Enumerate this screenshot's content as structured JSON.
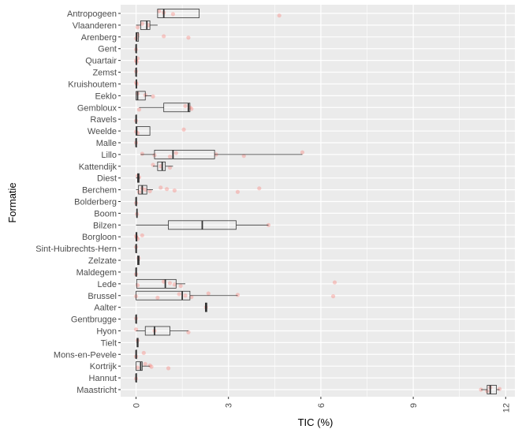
{
  "chart_data": {
    "type": "boxplot",
    "orientation": "horizontal",
    "xlabel": "TIC (%)",
    "ylabel": "Formatie",
    "xlim": [
      -0.5,
      12.3
    ],
    "xticks": [
      0,
      3,
      6,
      9,
      12
    ],
    "xtick_labels": [
      "0",
      "3",
      "6",
      "9",
      "12"
    ],
    "grid": true,
    "legend": "none",
    "colors": {
      "panel": "#ebebeb",
      "grid": "#ffffff",
      "box": "#333333",
      "point": "#f8766d"
    },
    "categories": [
      "Antropogeen",
      "Vlaanderen",
      "Arenberg",
      "Gent",
      "Quartair",
      "Zemst",
      "Kruishoutem",
      "Eeklo",
      "Gembloux",
      "Ravels",
      "Weelde",
      "Malle",
      "Lillo",
      "Kattendijk",
      "Diest",
      "Berchem",
      "Bolderberg",
      "Boom",
      "Bilzen",
      "Borgloon",
      "Sint-Huibrechts-Hern",
      "Zelzate",
      "Maldegem",
      "Lede",
      "Brussel",
      "Aalter",
      "Gentbrugge",
      "Hyon",
      "Tielt",
      "Mons-en-Pevele",
      "Kortrijk",
      "Hannut",
      "Maastricht"
    ],
    "boxes": [
      {
        "q1": 0.7,
        "median": 0.9,
        "q3": 2.05,
        "wmin": 0.7,
        "wmax": 2.05,
        "points": [
          0.75,
          0.9,
          1.2,
          4.65
        ]
      },
      {
        "q1": 0.15,
        "median": 0.35,
        "q3": 0.45,
        "wmin": 0.0,
        "wmax": 0.7,
        "points": [
          0.05,
          0.2,
          0.4
        ]
      },
      {
        "q1": 0.0,
        "median": 0.02,
        "q3": 0.08,
        "wmin": 0.0,
        "wmax": 0.1,
        "points": [
          0.0,
          0.05,
          0.9,
          1.7
        ]
      },
      {
        "q1": 0.0,
        "median": 0.0,
        "q3": 0.0,
        "wmin": 0.0,
        "wmax": 0.0,
        "points": [
          0.0
        ]
      },
      {
        "q1": 0.0,
        "median": 0.01,
        "q3": 0.02,
        "wmin": 0.0,
        "wmax": 0.03,
        "points": [
          0.0,
          0.02,
          0.05
        ]
      },
      {
        "q1": 0.0,
        "median": 0.0,
        "q3": 0.0,
        "wmin": 0.0,
        "wmax": 0.0,
        "points": [
          0.0
        ]
      },
      {
        "q1": 0.0,
        "median": 0.01,
        "q3": 0.02,
        "wmin": 0.0,
        "wmax": 0.03,
        "points": [
          0.0,
          0.02
        ]
      },
      {
        "q1": 0.0,
        "median": 0.05,
        "q3": 0.3,
        "wmin": 0.0,
        "wmax": 0.5,
        "points": [
          0.05,
          0.3,
          0.55
        ]
      },
      {
        "q1": 0.9,
        "median": 1.7,
        "q3": 1.75,
        "wmin": 0.1,
        "wmax": 1.75,
        "points": [
          0.1,
          1.6,
          1.75,
          1.8
        ]
      },
      {
        "q1": 0.0,
        "median": 0.0,
        "q3": 0.0,
        "wmin": 0.0,
        "wmax": 0.0,
        "points": [
          0.0
        ]
      },
      {
        "q1": 0.0,
        "median": 0.02,
        "q3": 0.45,
        "wmin": 0.0,
        "wmax": 0.45,
        "points": [
          0.0,
          0.05,
          1.55
        ]
      },
      {
        "q1": 0.0,
        "median": 0.0,
        "q3": 0.02,
        "wmin": 0.0,
        "wmax": 0.02,
        "points": [
          0.0
        ]
      },
      {
        "q1": 0.6,
        "median": 1.2,
        "q3": 2.55,
        "wmin": 0.15,
        "wmax": 5.4,
        "points": [
          0.2,
          0.6,
          1.1,
          1.3,
          2.6,
          3.5,
          5.4
        ]
      },
      {
        "q1": 0.7,
        "median": 0.85,
        "q3": 0.95,
        "wmin": 0.55,
        "wmax": 1.2,
        "points": [
          0.55,
          0.8,
          1.1
        ]
      },
      {
        "q1": 0.05,
        "median": 0.07,
        "q3": 0.1,
        "wmin": 0.0,
        "wmax": 0.12,
        "points": [
          0.05,
          0.1
        ]
      },
      {
        "q1": 0.08,
        "median": 0.2,
        "q3": 0.35,
        "wmin": 0.0,
        "wmax": 0.55,
        "points": [
          0.1,
          0.2,
          0.3,
          0.45,
          0.8,
          1.0,
          1.25,
          3.3,
          4.0
        ]
      },
      {
        "q1": 0.0,
        "median": 0.0,
        "q3": 0.02,
        "wmin": 0.0,
        "wmax": 0.02,
        "points": [
          0.0
        ]
      },
      {
        "q1": 0.02,
        "median": 0.03,
        "q3": 0.04,
        "wmin": 0.02,
        "wmax": 0.05,
        "points": [
          0.03
        ]
      },
      {
        "q1": 1.05,
        "median": 2.15,
        "q3": 3.25,
        "wmin": 0.0,
        "wmax": 4.3,
        "points": [
          4.3
        ]
      },
      {
        "q1": 0.0,
        "median": 0.01,
        "q3": 0.03,
        "wmin": 0.0,
        "wmax": 0.05,
        "points": [
          0.0,
          0.02,
          0.05,
          0.2
        ]
      },
      {
        "q1": 0.0,
        "median": 0.0,
        "q3": 0.0,
        "wmin": 0.0,
        "wmax": 0.0,
        "points": [
          0.0
        ]
      },
      {
        "q1": 0.05,
        "median": 0.08,
        "q3": 0.1,
        "wmin": 0.04,
        "wmax": 0.12,
        "points": [
          0.08
        ]
      },
      {
        "q1": 0.0,
        "median": 0.0,
        "q3": 0.0,
        "wmin": 0.0,
        "wmax": 0.0,
        "points": [
          0.0
        ]
      },
      {
        "q1": 0.02,
        "median": 0.95,
        "q3": 1.3,
        "wmin": 0.0,
        "wmax": 1.6,
        "points": [
          0.05,
          0.9,
          1.1,
          1.25,
          1.45,
          6.45
        ]
      },
      {
        "q1": 0.0,
        "median": 1.5,
        "q3": 1.75,
        "wmin": 0.0,
        "wmax": 3.3,
        "points": [
          0.0,
          0.7,
          1.4,
          1.6,
          1.8,
          2.35,
          3.3,
          6.4
        ]
      },
      {
        "q1": 2.25,
        "median": 2.27,
        "q3": 2.3,
        "wmin": 2.25,
        "wmax": 2.3,
        "points": [
          2.27
        ]
      },
      {
        "q1": 0.0,
        "median": 0.0,
        "q3": 0.0,
        "wmin": 0.0,
        "wmax": 0.0,
        "points": [
          0.0
        ]
      },
      {
        "q1": 0.3,
        "median": 0.6,
        "q3": 1.1,
        "wmin": 0.0,
        "wmax": 1.7,
        "points": [
          0.0,
          0.6,
          1.7
        ]
      },
      {
        "q1": 0.03,
        "median": 0.05,
        "q3": 0.07,
        "wmin": 0.02,
        "wmax": 0.08,
        "points": [
          0.05
        ]
      },
      {
        "q1": 0.0,
        "median": 0.0,
        "q3": 0.02,
        "wmin": 0.0,
        "wmax": 0.02,
        "points": [
          0.0,
          0.25
        ]
      },
      {
        "q1": 0.0,
        "median": 0.15,
        "q3": 0.2,
        "wmin": 0.0,
        "wmax": 0.45,
        "points": [
          0.05,
          0.3,
          0.45,
          0.5,
          1.05
        ]
      },
      {
        "q1": 0.0,
        "median": 0.0,
        "q3": 0.0,
        "wmin": 0.0,
        "wmax": 0.0,
        "points": [
          0.0
        ]
      },
      {
        "q1": 11.4,
        "median": 11.5,
        "q3": 11.7,
        "wmin": 11.2,
        "wmax": 11.8,
        "points": [
          11.2,
          11.4,
          11.5,
          11.8
        ]
      }
    ]
  }
}
